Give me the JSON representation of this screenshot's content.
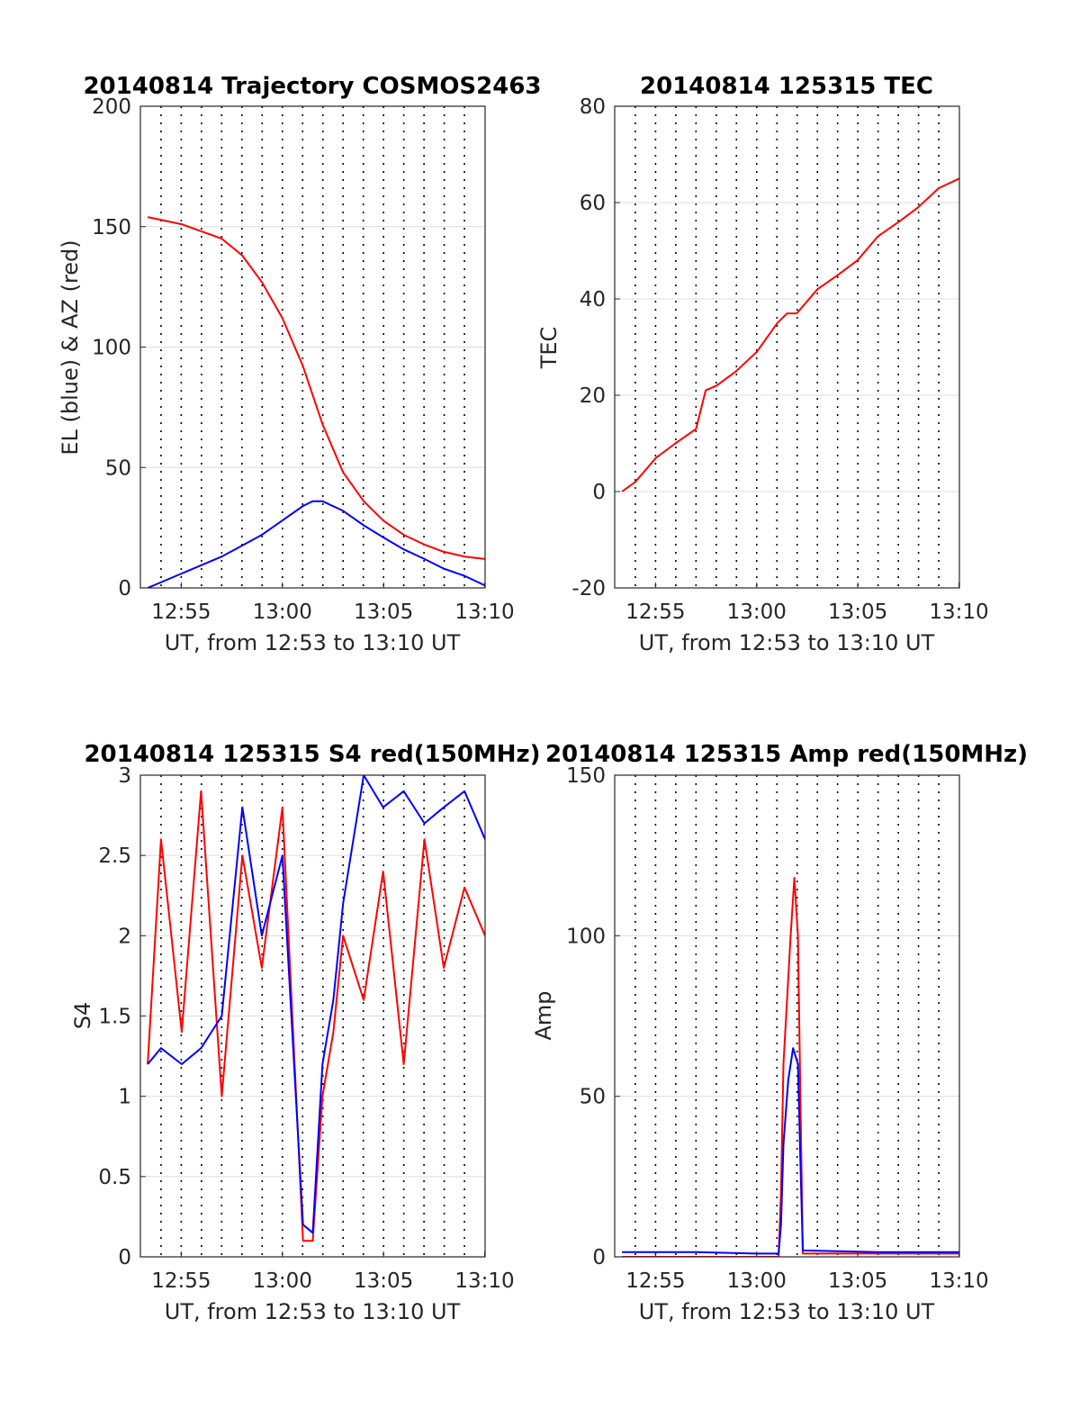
{
  "chart_data": [
    {
      "type": "line",
      "title": "20140814 Trajectory COSMOS2463",
      "xlabel": "UT, from 12:53 to 13:10 UT",
      "ylabel": "EL (blue) & AZ (red)",
      "xlim": [
        12.883,
        13.167
      ],
      "ylim": [
        0,
        200
      ],
      "yticks": [
        "0",
        "50",
        "100",
        "150",
        "200"
      ],
      "xticks": [
        "12:55",
        "13:00",
        "13:05",
        "13:10"
      ],
      "grid": true,
      "series": [
        {
          "color": "#ff0000",
          "x": [
            12.889,
            12.917,
            12.95,
            12.967,
            12.983,
            13.0,
            13.017,
            13.033,
            13.05,
            13.067,
            13.083,
            13.1,
            13.117,
            13.133,
            13.15,
            13.167
          ],
          "y": [
            154,
            151,
            145,
            138,
            127,
            112,
            92,
            68,
            48,
            36,
            28,
            22,
            18,
            15,
            13,
            12
          ]
        },
        {
          "color": "#0000ff",
          "x": [
            12.889,
            12.917,
            12.95,
            12.983,
            13.0,
            13.017,
            13.025,
            13.033,
            13.05,
            13.067,
            13.083,
            13.1,
            13.117,
            13.133,
            13.15,
            13.167
          ],
          "y": [
            0,
            6,
            13,
            22,
            28,
            34,
            36,
            36,
            32,
            26,
            21,
            16,
            12,
            8,
            5,
            1
          ]
        }
      ]
    },
    {
      "type": "line",
      "title": "20140814 125315 TEC",
      "xlabel": "UT, from 12:53 to 13:10 UT",
      "ylabel": "TEC",
      "xlim": [
        12.883,
        13.167
      ],
      "ylim": [
        -20,
        80
      ],
      "yticks": [
        "-20",
        "0",
        "20",
        "40",
        "60",
        "80"
      ],
      "xticks": [
        "12:55",
        "13:00",
        "13:05",
        "13:10"
      ],
      "grid": true,
      "series": [
        {
          "color": "#ff0000",
          "x": [
            12.889,
            12.9,
            12.917,
            12.933,
            12.95,
            12.958,
            12.967,
            12.983,
            13.0,
            13.017,
            13.025,
            13.033,
            13.05,
            13.067,
            13.083,
            13.1,
            13.117,
            13.133,
            13.15,
            13.167
          ],
          "y": [
            0,
            2,
            7,
            10,
            13,
            21,
            22,
            25,
            29,
            35,
            37,
            37,
            42,
            45,
            48,
            53,
            56,
            59,
            63,
            65
          ]
        }
      ]
    },
    {
      "type": "line",
      "title": "20140814 125315 S4 red(150MHz)",
      "xlabel": "UT, from 12:53 to 13:10 UT",
      "ylabel": "S4",
      "xlim": [
        12.883,
        13.167
      ],
      "ylim": [
        0,
        3
      ],
      "yticks": [
        "0",
        "0.5",
        "1",
        "1.5",
        "2",
        "2.5",
        "3"
      ],
      "xticks": [
        "12:55",
        "13:00",
        "13:05",
        "13:10"
      ],
      "grid": true,
      "series": [
        {
          "color": "#ff0000",
          "x": [
            12.889,
            12.9,
            12.917,
            12.933,
            12.95,
            12.967,
            12.983,
            13.0,
            13.017,
            13.025,
            13.033,
            13.042,
            13.05,
            13.067,
            13.083,
            13.1,
            13.117,
            13.133,
            13.15,
            13.167
          ],
          "y": [
            1.2,
            2.6,
            1.4,
            2.9,
            1.0,
            2.5,
            1.8,
            2.8,
            0.1,
            0.1,
            1.0,
            1.4,
            2.0,
            1.6,
            2.4,
            1.2,
            2.6,
            1.8,
            2.3,
            2.0
          ]
        },
        {
          "color": "#0000ff",
          "x": [
            12.889,
            12.9,
            12.917,
            12.933,
            12.95,
            12.967,
            12.983,
            13.0,
            13.017,
            13.025,
            13.033,
            13.042,
            13.05,
            13.067,
            13.083,
            13.1,
            13.117,
            13.133,
            13.15,
            13.167
          ],
          "y": [
            1.2,
            1.3,
            1.2,
            1.3,
            1.5,
            2.8,
            2.0,
            2.5,
            0.2,
            0.15,
            1.2,
            1.6,
            2.2,
            3.0,
            2.8,
            2.9,
            2.7,
            2.8,
            2.9,
            2.6
          ]
        }
      ]
    },
    {
      "type": "line",
      "title": "20140814 125315 Amp red(150MHz)",
      "xlabel": "UT, from 12:53 to 13:10 UT",
      "ylabel": "Amp",
      "xlim": [
        12.883,
        13.167
      ],
      "ylim": [
        0,
        150
      ],
      "yticks": [
        "0",
        "50",
        "100",
        "150"
      ],
      "xticks": [
        "12:55",
        "13:00",
        "13:05",
        "13:10"
      ],
      "grid": true,
      "series": [
        {
          "color": "#ff0000",
          "x": [
            12.889,
            13.0,
            13.018,
            13.02,
            13.022,
            13.025,
            13.028,
            13.031,
            13.034,
            13.036,
            13.038,
            13.1,
            13.167
          ],
          "y": [
            0,
            0,
            0,
            20,
            60,
            80,
            100,
            118,
            100,
            50,
            1,
            1,
            1
          ]
        },
        {
          "color": "#0000ff",
          "x": [
            12.889,
            12.95,
            13.0,
            13.018,
            13.02,
            13.022,
            13.026,
            13.03,
            13.034,
            13.036,
            13.038,
            13.1,
            13.167
          ],
          "y": [
            1.5,
            1.5,
            1,
            1,
            10,
            35,
            55,
            65,
            60,
            30,
            2,
            1.5,
            1.5
          ]
        }
      ]
    }
  ]
}
